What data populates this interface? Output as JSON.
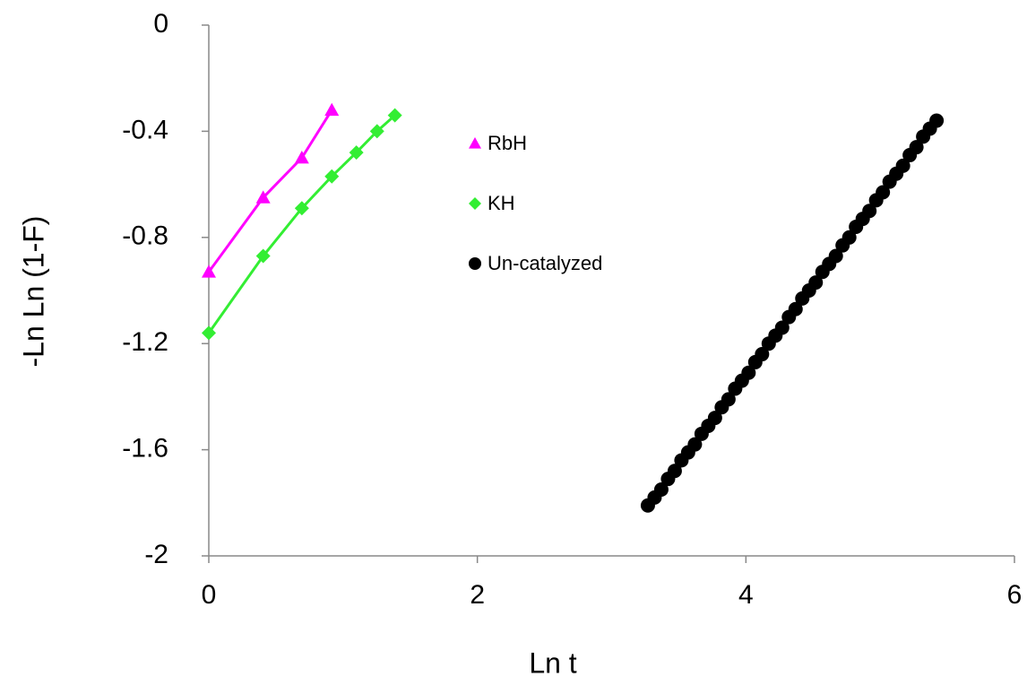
{
  "chart_data": {
    "type": "scatter",
    "x_label": "Ln t",
    "y_label": "-Ln Ln (1-F)",
    "xlim": [
      0,
      6
    ],
    "ylim": [
      -2,
      0
    ],
    "xticks": [
      0,
      2,
      4,
      6
    ],
    "yticks": [
      0,
      -0.4,
      -0.8,
      -1.2,
      -1.6,
      -2
    ],
    "series": [
      {
        "name": "RbH",
        "color": "#ff00ff",
        "marker": "triangle",
        "mode": "lines+markers",
        "x": [
          0,
          0.405,
          0.693,
          0.916
        ],
        "values": [
          -0.93,
          -0.65,
          -0.5,
          -0.32
        ]
      },
      {
        "name": "KH",
        "color": "#33ee33",
        "marker": "diamond",
        "mode": "lines+markers",
        "x": [
          0,
          0.405,
          0.693,
          0.916,
          1.099,
          1.253,
          1.386
        ],
        "values": [
          -1.16,
          -0.87,
          -0.69,
          -0.57,
          -0.48,
          -0.4,
          -0.34
        ]
      },
      {
        "name": "Un-catalyzed",
        "color": "#000000",
        "marker": "circle",
        "mode": "markers",
        "x": [
          3.27,
          3.32,
          3.37,
          3.42,
          3.47,
          3.52,
          3.57,
          3.62,
          3.67,
          3.72,
          3.77,
          3.82,
          3.87,
          3.92,
          3.97,
          4.02,
          4.07,
          4.12,
          4.17,
          4.22,
          4.27,
          4.32,
          4.37,
          4.42,
          4.47,
          4.52,
          4.57,
          4.62,
          4.67,
          4.72,
          4.77,
          4.82,
          4.87,
          4.92,
          4.97,
          5.02,
          5.07,
          5.12,
          5.17,
          5.22,
          5.27,
          5.32,
          5.37,
          5.42
        ],
        "values": [
          -1.81,
          -1.78,
          -1.75,
          -1.71,
          -1.68,
          -1.64,
          -1.61,
          -1.58,
          -1.54,
          -1.51,
          -1.48,
          -1.44,
          -1.41,
          -1.37,
          -1.34,
          -1.31,
          -1.27,
          -1.24,
          -1.2,
          -1.17,
          -1.14,
          -1.1,
          -1.07,
          -1.03,
          -1.0,
          -0.97,
          -0.93,
          -0.9,
          -0.87,
          -0.83,
          -0.8,
          -0.76,
          -0.73,
          -0.7,
          -0.66,
          -0.63,
          -0.59,
          -0.56,
          -0.53,
          -0.49,
          -0.46,
          -0.42,
          -0.39,
          -0.36
        ]
      }
    ]
  }
}
